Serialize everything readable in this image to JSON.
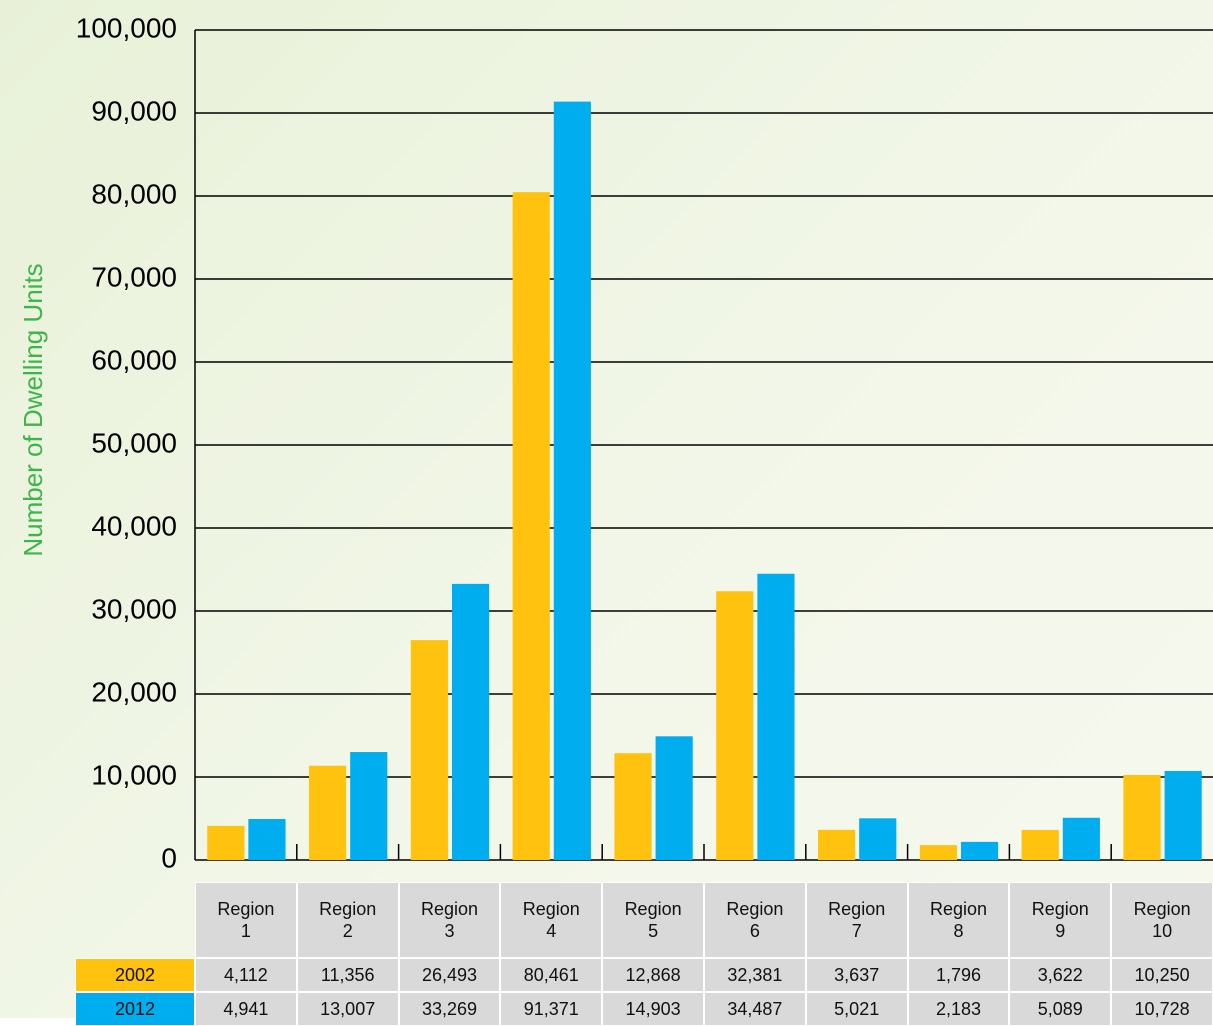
{
  "chart_data": {
    "type": "bar",
    "ylabel": "Number of Dwelling Units",
    "categories": [
      "Region 1",
      "Region 2",
      "Region 3",
      "Region 4",
      "Region 5",
      "Region 6",
      "Region 7",
      "Region 8",
      "Region 9",
      "Region 10"
    ],
    "series": [
      {
        "name": "2002",
        "color": "#ffc20e",
        "values": [
          4112,
          11356,
          26493,
          80461,
          12868,
          32381,
          3637,
          1796,
          3622,
          10250
        ],
        "value_labels": [
          "4,112",
          "11,356",
          "26,493",
          "80,461",
          "12,868",
          "32,381",
          "3,637",
          "1,796",
          "3,622",
          "10,250"
        ]
      },
      {
        "name": "2012",
        "color": "#00aeef",
        "values": [
          4941,
          13007,
          33269,
          91371,
          14903,
          34487,
          5021,
          2183,
          5089,
          10728
        ],
        "value_labels": [
          "4,941",
          "13,007",
          "33,269",
          "91,371",
          "14,903",
          "34,487",
          "5,021",
          "2,183",
          "5,089",
          "10,728"
        ]
      }
    ],
    "ylim": [
      0,
      100000
    ],
    "yticks": [
      0,
      {
        "value": 10000,
        "label": "10,000"
      },
      {
        "value": 20000,
        "label": "20,000"
      },
      {
        "value": 30000,
        "label": "30,000"
      },
      {
        "value": 40000,
        "label": "40,000"
      },
      {
        "value": 50000,
        "label": "50,000"
      },
      {
        "value": 60000,
        "label": "60,000"
      },
      {
        "value": 70000,
        "label": "70,000"
      },
      {
        "value": 80000,
        "label": "80,000"
      },
      {
        "value": 90000,
        "label": "90,000"
      },
      {
        "value": 100000,
        "label": "100,000"
      }
    ],
    "grid": true
  }
}
